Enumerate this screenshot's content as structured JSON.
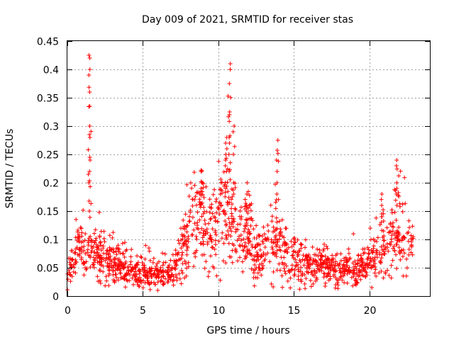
{
  "chart_data": {
    "type": "scatter",
    "title": "Day 009 of 2021, SRMTID for receiver stas",
    "xlabel": "GPS time / hours",
    "ylabel": "SRMTID / TECUs",
    "xlim": [
      0,
      24
    ],
    "ylim": [
      0,
      0.45
    ],
    "xticks": [
      0,
      5,
      10,
      15,
      20
    ],
    "xtick_labels": [
      "0",
      "5",
      "10",
      "15",
      "20"
    ],
    "yticks": [
      0,
      0.05,
      0.1,
      0.15,
      0.2,
      0.25,
      0.3,
      0.35,
      0.4,
      0.45
    ],
    "ytick_labels": [
      "0",
      "0.05",
      "0.1",
      "0.15",
      "0.2",
      "0.25",
      "0.3",
      "0.35",
      "0.4",
      "0.45"
    ],
    "grid": true,
    "marker": "+",
    "color": "#ff0000",
    "series": [
      {
        "name": "SRMTID",
        "note": "Representative envelope of the dense '+' scatter; the generator adds a reproducible cloud of points around this profile.",
        "profile": [
          {
            "x": 0.0,
            "y": 0.04
          },
          {
            "x": 0.5,
            "y": 0.07
          },
          {
            "x": 1.0,
            "y": 0.085
          },
          {
            "x": 1.5,
            "y": 0.08
          },
          {
            "x": 2.0,
            "y": 0.075
          },
          {
            "x": 3.0,
            "y": 0.06
          },
          {
            "x": 4.0,
            "y": 0.045
          },
          {
            "x": 5.0,
            "y": 0.04
          },
          {
            "x": 6.0,
            "y": 0.04
          },
          {
            "x": 7.0,
            "y": 0.045
          },
          {
            "x": 7.5,
            "y": 0.08
          },
          {
            "x": 8.0,
            "y": 0.11
          },
          {
            "x": 8.5,
            "y": 0.13
          },
          {
            "x": 9.0,
            "y": 0.13
          },
          {
            "x": 9.5,
            "y": 0.11
          },
          {
            "x": 10.0,
            "y": 0.14
          },
          {
            "x": 10.5,
            "y": 0.15
          },
          {
            "x": 11.0,
            "y": 0.12
          },
          {
            "x": 11.5,
            "y": 0.1
          },
          {
            "x": 12.0,
            "y": 0.1
          },
          {
            "x": 12.5,
            "y": 0.08
          },
          {
            "x": 13.0,
            "y": 0.07
          },
          {
            "x": 13.5,
            "y": 0.1
          },
          {
            "x": 14.0,
            "y": 0.1
          },
          {
            "x": 14.5,
            "y": 0.08
          },
          {
            "x": 15.0,
            "y": 0.06
          },
          {
            "x": 16.0,
            "y": 0.05
          },
          {
            "x": 17.0,
            "y": 0.055
          },
          {
            "x": 18.0,
            "y": 0.045
          },
          {
            "x": 19.0,
            "y": 0.05
          },
          {
            "x": 20.0,
            "y": 0.06
          },
          {
            "x": 20.5,
            "y": 0.07
          },
          {
            "x": 21.0,
            "y": 0.08
          },
          {
            "x": 21.5,
            "y": 0.1
          },
          {
            "x": 22.0,
            "y": 0.11
          },
          {
            "x": 22.5,
            "y": 0.1
          },
          {
            "x": 22.9,
            "y": 0.08
          }
        ],
        "peaks": [
          {
            "x": 1.45,
            "y": [
              0.425,
              0.42,
              0.4,
              0.39,
              0.36,
              0.335,
              0.3,
              0.285,
              0.28,
              0.245,
              0.24,
              0.22,
              0.215,
              0.2,
              0.15
            ]
          },
          {
            "x": 10.5,
            "y": [
              0.28,
              0.27,
              0.26,
              0.25,
              0.24,
              0.23,
              0.22,
              0.2,
              0.19
            ]
          },
          {
            "x": 10.75,
            "y": [
              0.41,
              0.4,
              0.375,
              0.325,
              0.32,
              0.28,
              0.27,
              0.25,
              0.22
            ]
          },
          {
            "x": 11.0,
            "y": [
              0.3,
              0.29,
              0.25,
              0.2,
              0.18
            ]
          },
          {
            "x": 11.9,
            "y": [
              0.2,
              0.18,
              0.16,
              0.15
            ]
          },
          {
            "x": 13.9,
            "y": [
              0.275,
              0.24,
              0.22,
              0.2,
              0.18,
              0.17
            ]
          },
          {
            "x": 21.8,
            "y": [
              0.24,
              0.23,
              0.2,
              0.19,
              0.18,
              0.16
            ]
          },
          {
            "x": 20.8,
            "y": [
              0.18,
              0.16,
              0.14,
              0.13
            ]
          },
          {
            "x": 8.9,
            "y": [
              0.22,
              0.2,
              0.19,
              0.185
            ]
          }
        ]
      }
    ]
  }
}
